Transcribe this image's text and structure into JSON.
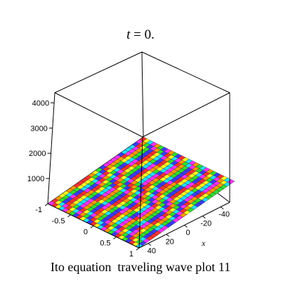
{
  "chart_data": {
    "type": "surface",
    "title_var": "t",
    "title_value": " = 0.",
    "caption": "Ito equation  traveling wave plot 11",
    "xlabel": "x",
    "ylabel": "",
    "zlabel": "",
    "x_ticks": [
      "-40",
      "-20",
      "0",
      "20",
      "40"
    ],
    "y_ticks": [
      "-1",
      "-0.5",
      "0",
      "0.5",
      "1"
    ],
    "z_ticks": [
      "1000",
      "2000",
      "3000",
      "4000"
    ],
    "xlim": [
      -50,
      50
    ],
    "ylim": [
      -1,
      1
    ],
    "zlim": [
      0,
      4400
    ],
    "surface_note": "Flat surface near z=0 colored with rainbow stripes",
    "colorscheme": [
      "#ff3030",
      "#ff9a00",
      "#ffff20",
      "#30e030",
      "#20e0ff",
      "#3a3aff",
      "#ff30ff"
    ]
  }
}
